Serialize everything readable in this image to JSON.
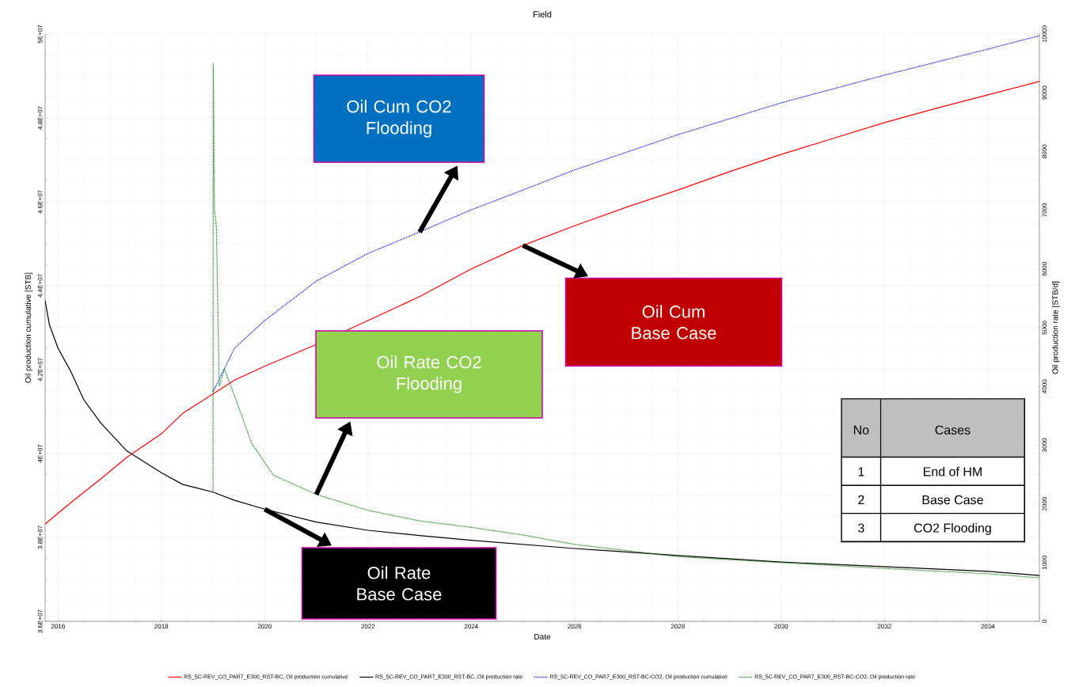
{
  "chart_data": {
    "type": "line",
    "title": "Field",
    "xlabel": "Date",
    "ylabel": "Oil production cumulative [STB]",
    "y2label": "Oil production rate [STB/d]",
    "xlim": [
      "2015-10",
      "2035-01"
    ],
    "xticks": [
      "2016",
      "2018",
      "2020",
      "2022",
      "2024",
      "2026",
      "2028",
      "2030",
      "2032",
      "2034"
    ],
    "ylim": [
      36000000,
      50000000
    ],
    "yticks": [
      {
        "value": 36000000,
        "label": "3.6E+07"
      },
      {
        "value": 38000000,
        "label": "3.8E+07"
      },
      {
        "value": 40000000,
        "label": "4E+07"
      },
      {
        "value": 42000000,
        "label": "4.2E+07"
      },
      {
        "value": 44000000,
        "label": "4.4E+07"
      },
      {
        "value": 46000000,
        "label": "4.6E+07"
      },
      {
        "value": 48000000,
        "label": "4.8E+07"
      },
      {
        "value": 50000000,
        "label": "5E+07"
      }
    ],
    "y2lim": [
      0,
      10000
    ],
    "y2ticks": [
      0,
      1000,
      2000,
      3000,
      4000,
      5000,
      6000,
      7000,
      8000,
      9000,
      10000
    ],
    "grid": true,
    "legend": "bottom",
    "marker": "none",
    "series": [
      {
        "name": "RS_5C-REV_CO_PAR7_E300_RST-BC, Oil production cumulative",
        "color": "#ff0000",
        "line_style": "solid",
        "x": [
          "2015-10",
          "2016-04",
          "2016-11",
          "2017-05",
          "2018-01",
          "2018-06",
          "2019-01",
          "2019-06",
          "2020-01",
          "2021-01",
          "2022-01",
          "2023-01",
          "2024-01",
          "2025-01",
          "2026-01",
          "2027-01",
          "2028-01",
          "2029-01",
          "2030-01",
          "2031-01",
          "2032-01",
          "2033-01",
          "2034-01",
          "2035-01"
        ],
        "values": [
          38320000,
          38830000,
          39400000,
          39910000,
          40470000,
          40960000,
          41420000,
          41750000,
          42080000,
          42600000,
          43170000,
          43740000,
          44400000,
          44960000,
          45430000,
          45870000,
          46280000,
          46720000,
          47130000,
          47510000,
          47890000,
          48230000,
          48550000,
          48870000
        ]
      },
      {
        "name": "RS_5C-REV_CO_PAR7_E300_RST-BC, Oil production rate",
        "color": "#000000",
        "line_style": "solid",
        "axis": "y2",
        "x": [
          "2015-10",
          "2015-11",
          "2016-01",
          "2016-04",
          "2016-07",
          "2016-11",
          "2017-05",
          "2018-01",
          "2018-06",
          "2019-01",
          "2019-06",
          "2020-01",
          "2021-01",
          "2022-01",
          "2023-01",
          "2024-01",
          "2025-01",
          "2026-01",
          "2028-01",
          "2030-01",
          "2032-01",
          "2034-01",
          "2035-01"
        ],
        "values": [
          5460,
          5050,
          4650,
          4250,
          3770,
          3370,
          2900,
          2530,
          2330,
          2200,
          2060,
          1910,
          1690,
          1550,
          1460,
          1380,
          1310,
          1240,
          1120,
          1010,
          930,
          850,
          780
        ]
      },
      {
        "name": "RS_5C-REV_CO_PAR7_E300_RST-BC-CO2, Oil production cumulative",
        "color": "#0000ff",
        "line_style": "dotted",
        "x": [
          "2019-01",
          "2019-06",
          "2020-01",
          "2021-01",
          "2022-01",
          "2023-01",
          "2024-01",
          "2025-01",
          "2026-01",
          "2028-01",
          "2030-01",
          "2032-01",
          "2034-01",
          "2035-01"
        ],
        "values": [
          41470000,
          42510000,
          43170000,
          44110000,
          44770000,
          45280000,
          45810000,
          46280000,
          46760000,
          47600000,
          48360000,
          49020000,
          49640000,
          49960000
        ]
      },
      {
        "name": "RS_5C-REV_CO_PAR7_E300_RST-BC-CO2, Oil production rate",
        "color": "#008000",
        "line_style": "dotted",
        "axis": "y2",
        "x": [
          "2019-01-01",
          "2019-01-03",
          "2019-01-06",
          "2019-01-12",
          "2019-01-25",
          "2019-02-15",
          "2019-03-20",
          "2019-06",
          "2019-10",
          "2020-03",
          "2021-01",
          "2022-01",
          "2023-01",
          "2024-01",
          "2025-01",
          "2026-01",
          "2028-01",
          "2030-01",
          "2032-01",
          "2034-01",
          "2035-01"
        ],
        "values": [
          2200,
          9500,
          8500,
          7000,
          6700,
          4000,
          4300,
          3840,
          3030,
          2490,
          2160,
          1890,
          1710,
          1600,
          1470,
          1310,
          1100,
          1000,
          900,
          810,
          740
        ]
      }
    ],
    "annotations": [
      "Oil Cum CO2 Flooding",
      "Oil Cum Base Case",
      "Oil Rate CO2 Flooding",
      "Oil Rate Base Case",
      "No",
      "Cases",
      "1",
      "End of HM",
      "2",
      "Base Case",
      "3",
      "CO2 Flooding"
    ]
  }
}
